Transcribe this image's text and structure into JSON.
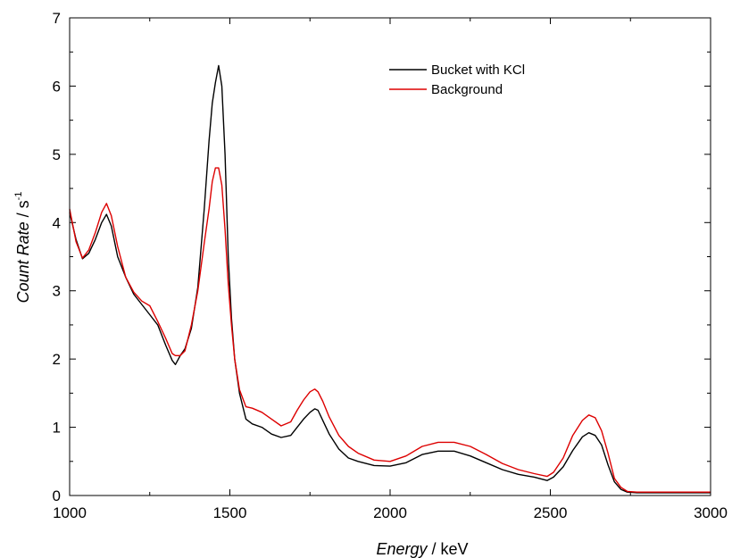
{
  "chart_data": {
    "type": "line",
    "title": "",
    "xlabel_italic": "Energy",
    "xlabel_unit": " / keV",
    "ylabel_italic": "Count Rate",
    "ylabel_unit": " / s",
    "ylabel_exponent": "-1",
    "xlim": [
      1000,
      3000
    ],
    "ylim": [
      0,
      7
    ],
    "xticks": [
      1000,
      1500,
      2000,
      2500,
      3000
    ],
    "yticks": [
      0,
      1,
      2,
      3,
      4,
      5,
      6,
      7
    ],
    "grid": false,
    "legend_position": "top-right",
    "series": [
      {
        "name": "Bucket with KCl",
        "color": "#000000",
        "x": [
          1000,
          1020,
          1040,
          1060,
          1080,
          1100,
          1115,
          1130,
          1150,
          1175,
          1200,
          1225,
          1250,
          1275,
          1300,
          1320,
          1330,
          1345,
          1360,
          1380,
          1400,
          1420,
          1435,
          1445,
          1455,
          1465,
          1475,
          1485,
          1495,
          1505,
          1515,
          1530,
          1550,
          1570,
          1600,
          1630,
          1660,
          1690,
          1710,
          1730,
          1750,
          1765,
          1775,
          1790,
          1810,
          1840,
          1870,
          1900,
          1950,
          2000,
          2050,
          2100,
          2150,
          2200,
          2250,
          2300,
          2350,
          2400,
          2450,
          2490,
          2510,
          2540,
          2570,
          2600,
          2620,
          2640,
          2660,
          2680,
          2700,
          2720,
          2740,
          2770,
          2800,
          2900,
          3000
        ],
        "values": [
          4.15,
          3.75,
          3.47,
          3.55,
          3.75,
          4.0,
          4.12,
          3.95,
          3.5,
          3.2,
          2.95,
          2.8,
          2.65,
          2.5,
          2.2,
          1.98,
          1.92,
          2.05,
          2.15,
          2.45,
          3.05,
          4.2,
          5.2,
          5.75,
          6.05,
          6.3,
          6.0,
          5.0,
          3.5,
          2.6,
          2.0,
          1.5,
          1.12,
          1.05,
          1.0,
          0.9,
          0.85,
          0.88,
          1.0,
          1.12,
          1.22,
          1.27,
          1.25,
          1.1,
          0.9,
          0.68,
          0.55,
          0.5,
          0.44,
          0.43,
          0.48,
          0.6,
          0.65,
          0.65,
          0.58,
          0.48,
          0.38,
          0.31,
          0.27,
          0.22,
          0.27,
          0.42,
          0.66,
          0.86,
          0.92,
          0.88,
          0.74,
          0.45,
          0.2,
          0.09,
          0.05,
          0.04,
          0.04,
          0.04,
          0.04
        ]
      },
      {
        "name": "Background",
        "color": "#dd0000",
        "x": [
          1000,
          1020,
          1040,
          1060,
          1080,
          1100,
          1115,
          1130,
          1150,
          1175,
          1200,
          1225,
          1250,
          1275,
          1300,
          1320,
          1330,
          1345,
          1360,
          1380,
          1400,
          1420,
          1435,
          1445,
          1455,
          1465,
          1475,
          1485,
          1495,
          1505,
          1515,
          1530,
          1550,
          1570,
          1600,
          1630,
          1660,
          1690,
          1710,
          1730,
          1750,
          1765,
          1775,
          1790,
          1810,
          1840,
          1870,
          1900,
          1950,
          2000,
          2050,
          2100,
          2150,
          2200,
          2250,
          2300,
          2350,
          2400,
          2450,
          2490,
          2510,
          2540,
          2570,
          2600,
          2620,
          2640,
          2660,
          2680,
          2700,
          2720,
          2740,
          2770,
          2800,
          2900,
          3000
        ],
        "values": [
          4.2,
          3.72,
          3.48,
          3.6,
          3.85,
          4.15,
          4.28,
          4.1,
          3.65,
          3.2,
          2.98,
          2.85,
          2.78,
          2.55,
          2.3,
          2.08,
          2.05,
          2.05,
          2.12,
          2.5,
          3.0,
          3.7,
          4.2,
          4.6,
          4.8,
          4.8,
          4.55,
          3.9,
          3.1,
          2.5,
          2.0,
          1.55,
          1.3,
          1.28,
          1.22,
          1.12,
          1.02,
          1.08,
          1.25,
          1.4,
          1.52,
          1.56,
          1.52,
          1.38,
          1.15,
          0.88,
          0.72,
          0.62,
          0.52,
          0.5,
          0.58,
          0.72,
          0.78,
          0.78,
          0.72,
          0.6,
          0.47,
          0.38,
          0.32,
          0.28,
          0.34,
          0.55,
          0.88,
          1.1,
          1.18,
          1.14,
          0.95,
          0.62,
          0.25,
          0.12,
          0.06,
          0.05,
          0.05,
          0.05,
          0.05
        ]
      }
    ]
  }
}
